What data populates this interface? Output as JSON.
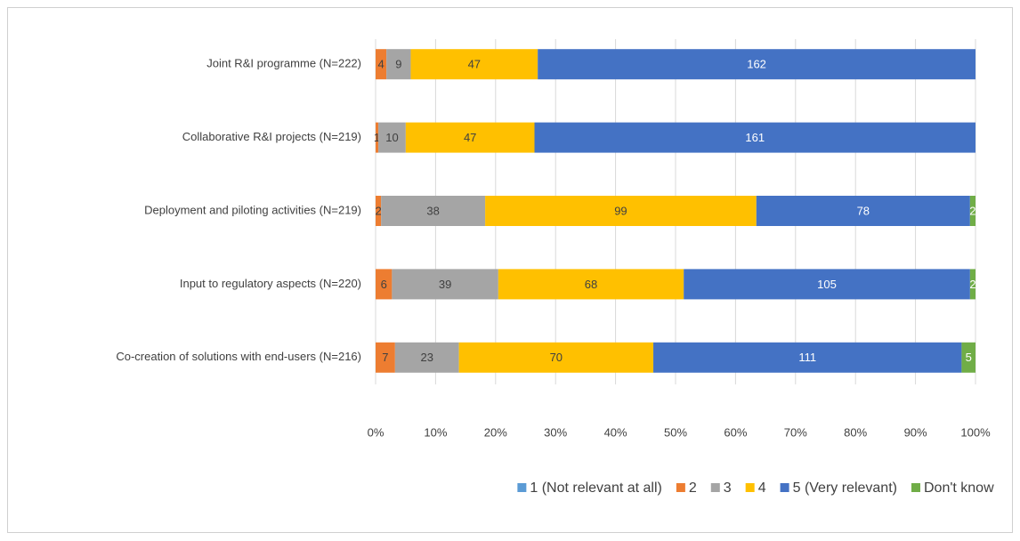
{
  "chart_data": {
    "type": "bar",
    "orientation": "horizontal",
    "stacking": "percent",
    "categories": [
      "Joint R&I programme (N=222)",
      "Collaborative R&I projects (N=219)",
      "Deployment and piloting activities (N=219)",
      "Input to regulatory aspects (N=220)",
      "Co-creation of solutions with end-users (N=216)"
    ],
    "series": [
      {
        "name": "1 (Not relevant at all)",
        "color": "#5b9bd5",
        "values": [
          0,
          0,
          0,
          0,
          0
        ]
      },
      {
        "name": "2",
        "color": "#ed7d31",
        "values": [
          4,
          1,
          2,
          6,
          7
        ]
      },
      {
        "name": "3",
        "color": "#a5a5a5",
        "values": [
          9,
          10,
          38,
          39,
          23
        ]
      },
      {
        "name": "4",
        "color": "#ffc000",
        "values": [
          47,
          47,
          99,
          68,
          70
        ]
      },
      {
        "name": "5 (Very relevant)",
        "color": "#4472c4",
        "values": [
          162,
          161,
          78,
          105,
          111
        ]
      },
      {
        "name": "Don't know",
        "color": "#70ad47",
        "values": [
          0,
          0,
          2,
          2,
          5
        ]
      }
    ],
    "xlim": [
      0,
      100
    ],
    "xticks": [
      {
        "value": 0,
        "label": "0%"
      },
      {
        "value": 10,
        "label": "10%"
      },
      {
        "value": 20,
        "label": "20%"
      },
      {
        "value": 30,
        "label": "30%"
      },
      {
        "value": 40,
        "label": "40%"
      },
      {
        "value": 50,
        "label": "50%"
      },
      {
        "value": 60,
        "label": "60%"
      },
      {
        "value": 70,
        "label": "70%"
      },
      {
        "value": 80,
        "label": "80%"
      },
      {
        "value": 90,
        "label": "90%"
      },
      {
        "value": 100,
        "label": "100%"
      }
    ],
    "grid": true,
    "legend": "bottom"
  }
}
